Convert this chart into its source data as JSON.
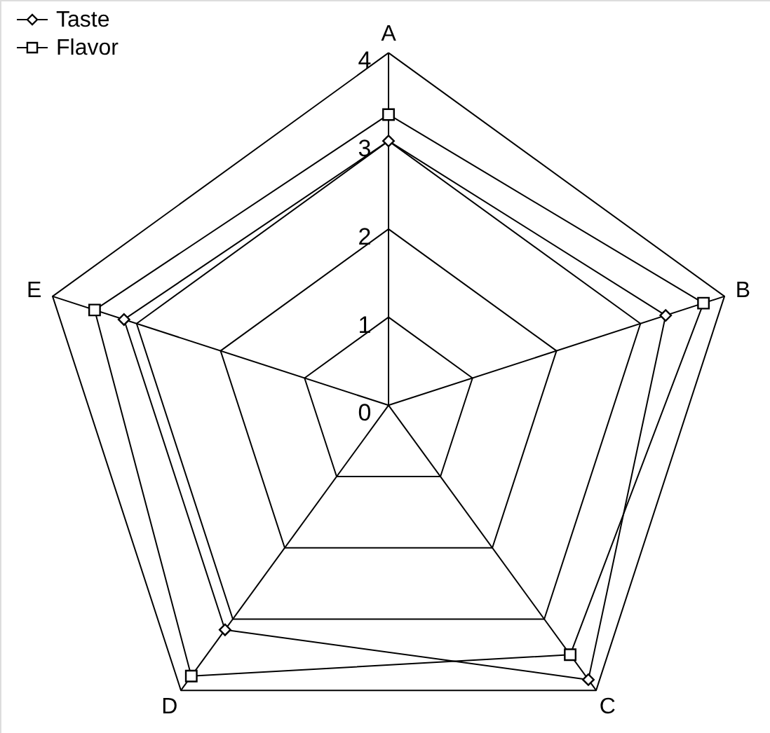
{
  "chart_data": {
    "type": "radar",
    "categories": [
      "A",
      "B",
      "C",
      "D",
      "E"
    ],
    "ylim": [
      0,
      4
    ],
    "yticks": [
      0,
      1,
      2,
      3,
      4
    ],
    "legend": "top left",
    "grid": true,
    "series": [
      {
        "name": "Taste",
        "color": "#000000",
        "marker": "diamond",
        "values": [
          3.0,
          3.3,
          3.85,
          3.15,
          3.15
        ]
      },
      {
        "name": "Flavor",
        "color": "#000000",
        "marker": "square",
        "values": [
          3.3,
          3.75,
          3.5,
          3.8,
          3.5
        ]
      }
    ]
  }
}
